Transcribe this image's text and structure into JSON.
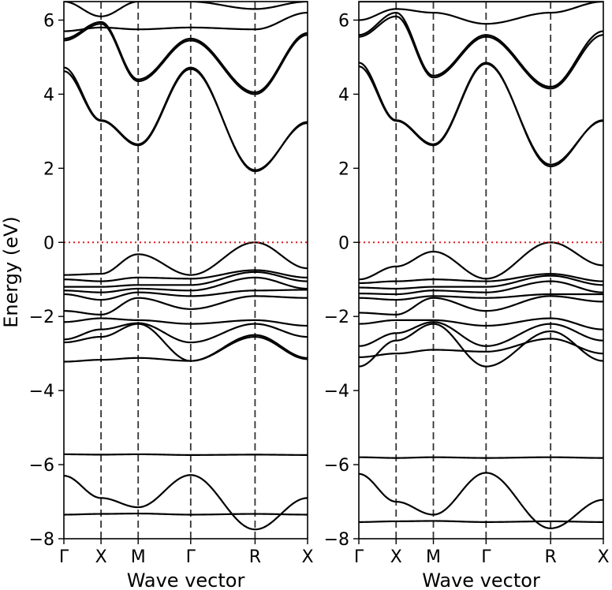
{
  "chart_data": {
    "type": "line",
    "description_units": "eV",
    "ylabel": "Energy (eV)",
    "xlabel": "Wave vector",
    "ylim": [
      -8,
      6.5
    ],
    "yticks": [
      -8,
      -6,
      -4,
      -2,
      0,
      2,
      4,
      6
    ],
    "ytick_labels": [
      "−8",
      "−6",
      "−4",
      "−2",
      "0",
      "2",
      "4",
      "6"
    ],
    "kpath": [
      {
        "label": "Γ",
        "pos": 0.0
      },
      {
        "label": "X",
        "pos": 0.5
      },
      {
        "label": "M",
        "pos": 1.0
      },
      {
        "label": "Γ",
        "pos": 1.707
      },
      {
        "label": "R",
        "pos": 2.573
      },
      {
        "label": "X",
        "pos": 3.28
      }
    ],
    "fermi_level": {
      "value": 0,
      "color": "#e0191c",
      "style": "dotted"
    },
    "band_color": "#000000",
    "panels": [
      {
        "name": "left",
        "series": [
          {
            "name": "band-1",
            "values": [
              -7.35,
              -7.33,
              -7.32,
              -7.35,
              -7.33,
              -7.35
            ]
          },
          {
            "name": "band-2",
            "values": [
              -6.3,
              -6.9,
              -7.15,
              -6.28,
              -7.75,
              -6.9
            ]
          },
          {
            "name": "band-3",
            "values": [
              -5.72,
              -5.73,
              -5.72,
              -5.74,
              -5.73,
              -5.74
            ]
          },
          {
            "name": "band-4",
            "values": [
              -3.22,
              -3.17,
              -3.12,
              -3.2,
              -2.55,
              -3.15
            ]
          },
          {
            "name": "band-5",
            "values": [
              -2.7,
              -2.55,
              -2.2,
              -3.2,
              -2.5,
              -3.12
            ]
          },
          {
            "name": "band-6",
            "values": [
              -2.62,
              -2.35,
              -2.18,
              -2.7,
              -2.2,
              -2.55
            ]
          },
          {
            "name": "band-7",
            "values": [
              -2.15,
              -2.05,
              -2.1,
              -2.2,
              -2.1,
              -2.25
            ]
          },
          {
            "name": "band-8",
            "values": [
              -1.85,
              -1.95,
              -1.5,
              -1.8,
              -1.45,
              -1.5
            ]
          },
          {
            "name": "band-9",
            "values": [
              -1.4,
              -1.55,
              -1.35,
              -1.45,
              -1.3,
              -1.28
            ]
          },
          {
            "name": "band-10",
            "values": [
              -1.3,
              -1.35,
              -1.25,
              -1.3,
              -0.95,
              -1.25
            ]
          },
          {
            "name": "band-11",
            "values": [
              -1.2,
              -1.2,
              -1.15,
              -1.15,
              -0.8,
              -1.05
            ]
          },
          {
            "name": "band-12",
            "values": [
              -1.0,
              -1.05,
              -0.95,
              -0.98,
              -0.75,
              -0.95
            ]
          },
          {
            "name": "band-13",
            "values": [
              -0.88,
              -0.85,
              -0.32,
              -0.88,
              0.0,
              -0.7
            ]
          },
          {
            "name": "band-14",
            "values": [
              4.72,
              3.3,
              2.65,
              4.72,
              1.92,
              3.25
            ]
          },
          {
            "name": "band-15",
            "values": [
              4.62,
              3.28,
              2.62,
              4.68,
              1.95,
              3.22
            ]
          },
          {
            "name": "band-16",
            "values": [
              5.45,
              5.9,
              4.35,
              5.45,
              4.0,
              5.6
            ]
          },
          {
            "name": "band-17",
            "values": [
              5.5,
              5.95,
              4.4,
              5.5,
              4.05,
              5.65
            ]
          },
          {
            "name": "band-18",
            "values": [
              5.7,
              5.8,
              5.75,
              5.8,
              5.75,
              6.2
            ]
          },
          {
            "name": "band-19",
            "values": [
              6.5,
              6.1,
              6.5,
              6.5,
              6.3,
              6.5
            ]
          }
        ]
      },
      {
        "name": "right",
        "series": [
          {
            "name": "band-1",
            "values": [
              -7.55,
              -7.53,
              -7.52,
              -7.55,
              -7.53,
              -7.55
            ]
          },
          {
            "name": "band-2",
            "values": [
              -6.25,
              -7.0,
              -7.35,
              -6.22,
              -7.72,
              -6.95
            ]
          },
          {
            "name": "band-3",
            "values": [
              -5.8,
              -5.82,
              -5.8,
              -5.82,
              -5.8,
              -5.82
            ]
          },
          {
            "name": "band-4",
            "values": [
              -3.1,
              -3.0,
              -2.9,
              -2.95,
              -2.6,
              -3.0
            ]
          },
          {
            "name": "band-5",
            "values": [
              -3.35,
              -2.65,
              -2.2,
              -3.35,
              -2.4,
              -3.2
            ]
          },
          {
            "name": "band-6",
            "values": [
              -2.8,
              -2.45,
              -2.15,
              -2.8,
              -2.2,
              -2.65
            ]
          },
          {
            "name": "band-7",
            "values": [
              -2.2,
              -2.1,
              -2.1,
              -2.25,
              -2.05,
              -2.35
            ]
          },
          {
            "name": "band-8",
            "values": [
              -1.9,
              -1.95,
              -1.5,
              -1.85,
              -1.45,
              -1.6
            ]
          },
          {
            "name": "band-9",
            "values": [
              -1.5,
              -1.55,
              -1.45,
              -1.5,
              -1.4,
              -1.4
            ]
          },
          {
            "name": "band-10",
            "values": [
              -1.38,
              -1.4,
              -1.3,
              -1.35,
              -1.05,
              -1.35
            ]
          },
          {
            "name": "band-11",
            "values": [
              -1.22,
              -1.25,
              -1.2,
              -1.2,
              -0.9,
              -1.15
            ]
          },
          {
            "name": "band-12",
            "values": [
              -1.1,
              -1.05,
              -1.0,
              -1.05,
              -0.85,
              -1.05
            ]
          },
          {
            "name": "band-13",
            "values": [
              -1.0,
              -0.65,
              -0.25,
              -0.98,
              0.0,
              -0.62
            ]
          },
          {
            "name": "band-14",
            "values": [
              4.85,
              3.3,
              2.65,
              4.85,
              2.05,
              3.3
            ]
          },
          {
            "name": "band-15",
            "values": [
              4.75,
              3.28,
              2.62,
              4.82,
              2.1,
              3.28
            ]
          },
          {
            "name": "band-16",
            "values": [
              5.55,
              6.1,
              4.45,
              5.55,
              4.15,
              5.6
            ]
          },
          {
            "name": "band-17",
            "values": [
              5.6,
              6.2,
              4.5,
              5.6,
              4.2,
              5.7
            ]
          },
          {
            "name": "band-18",
            "values": [
              6.0,
              6.3,
              6.2,
              5.9,
              6.2,
              6.5
            ]
          },
          {
            "name": "band-19",
            "values": [
              6.5,
              6.5,
              6.5,
              6.5,
              6.5,
              6.5
            ]
          }
        ]
      }
    ]
  }
}
